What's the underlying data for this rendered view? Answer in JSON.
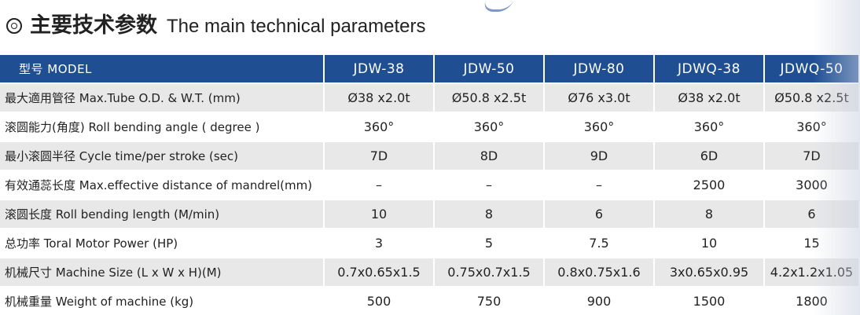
{
  "heading": {
    "title_cn": "主要技术参数",
    "title_en": "The main technical parameters",
    "bullet_icon": "double-circle-icon"
  },
  "colors": {
    "header_bg": "#1f4e93",
    "row_shade": "#e8e8e8"
  },
  "table": {
    "header": [
      "型号 MODEL",
      "JDW-38",
      "JDW-50",
      "JDW-80",
      "JDWQ-38",
      "JDWQ-50"
    ],
    "rows": [
      {
        "label": "最大適用管径  Max.Tube O.D. & W.T.  (mm)",
        "values": [
          "Ø38 x2.0t",
          "Ø50.8 x2.5t",
          "Ø76 x3.0t",
          "Ø38 x2.0t",
          "Ø50.8 x2.5t"
        ]
      },
      {
        "label": "滚圆能力(角度)   Roll bending angle  ( degree )",
        "values": [
          "360°",
          "360°",
          "360°",
          "360°",
          "360°"
        ]
      },
      {
        "label": "最小滚圆半径  Cycle time/per stroke (sec)",
        "values": [
          "7D",
          "8D",
          "9D",
          "6D",
          "7D"
        ]
      },
      {
        "label": "有效通蕊长度  Max.effective distance of mandrel(mm)",
        "values": [
          "–",
          "–",
          "–",
          "2500",
          "3000"
        ]
      },
      {
        "label": "滚圆长度 Roll bending length (M/min)",
        "values": [
          "10",
          "8",
          "6",
          "8",
          "6"
        ]
      },
      {
        "label": "总功率  Toral Motor Power (HP)",
        "values": [
          "3",
          "5",
          "7.5",
          "10",
          "15"
        ]
      },
      {
        "label": "机械尺寸  Machine Size (L x W x H)(M)",
        "values": [
          "0.7x0.65x1.5",
          "0.75x0.7x1.5",
          "0.8x0.75x1.6",
          "3x0.65x0.95",
          "4.2x1.2x1.05"
        ]
      },
      {
        "label": "机械重量  Weight of machine (kg)",
        "values": [
          "500",
          "750",
          "900",
          "1500",
          "1800"
        ]
      }
    ]
  }
}
